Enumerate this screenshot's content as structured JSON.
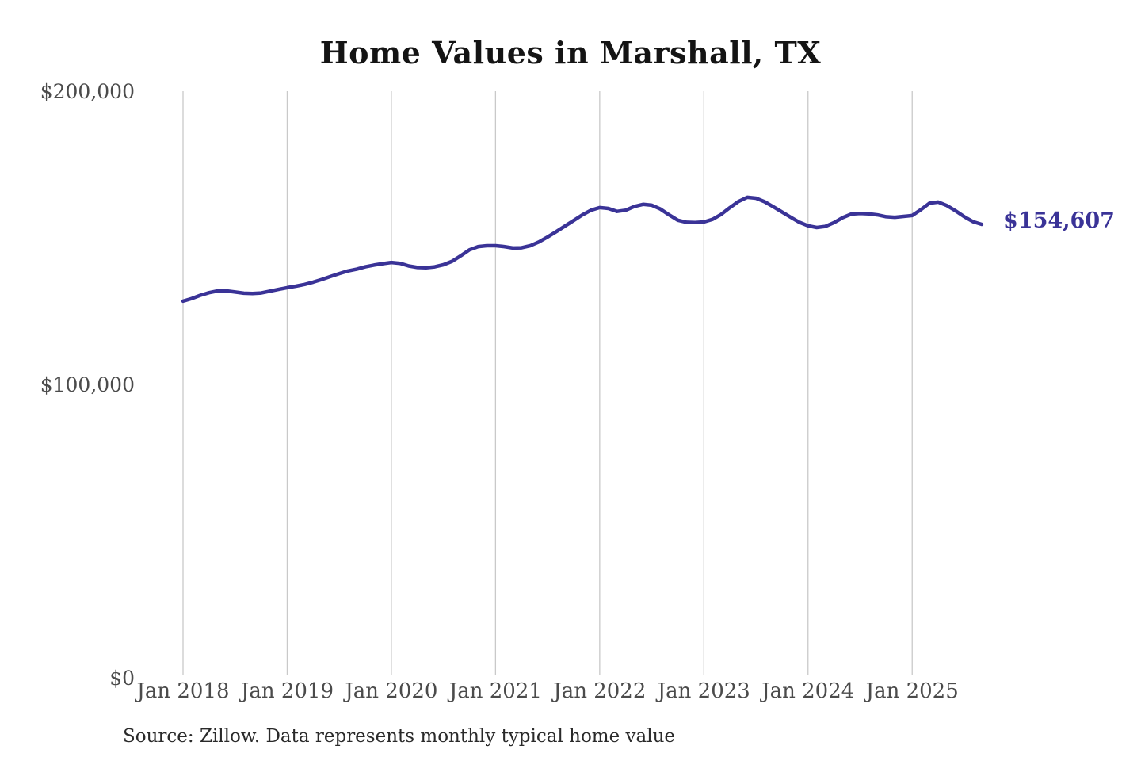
{
  "chart_data": {
    "type": "line",
    "title": "Home Values in Marshall, TX",
    "xlabel": "",
    "ylabel": "",
    "ylim": [
      0,
      200000
    ],
    "grid": "vertical-year-gridlines",
    "legend_position": "none",
    "x_ticks": [
      "Jan 2018",
      "Jan 2019",
      "Jan 2020",
      "Jan 2021",
      "Jan 2022",
      "Jan 2023",
      "Jan 2024",
      "Jan 2025"
    ],
    "y_ticks": [
      {
        "value": 0,
        "label": "$0"
      },
      {
        "value": 100000,
        "label": "$100,000"
      },
      {
        "value": 200000,
        "label": "$200,000"
      }
    ],
    "series": [
      {
        "name": "Monthly typical home value",
        "start_month": "Jan 2018",
        "end_month": "Sep 2025",
        "values": [
          128400,
          129300,
          130400,
          131300,
          131900,
          131900,
          131500,
          131100,
          131000,
          131200,
          131800,
          132400,
          133000,
          133500,
          134100,
          134900,
          135800,
          136800,
          137800,
          138700,
          139300,
          140100,
          140700,
          141200,
          141600,
          141300,
          140400,
          139900,
          139800,
          140100,
          140800,
          142000,
          143900,
          145900,
          147000,
          147300,
          147300,
          147000,
          146500,
          146600,
          147300,
          148600,
          150300,
          152100,
          154000,
          155900,
          157800,
          159400,
          160300,
          160000,
          159000,
          159400,
          160700,
          161400,
          161100,
          159800,
          157800,
          156000,
          155300,
          155200,
          155400,
          156300,
          158000,
          160300,
          162400,
          163800,
          163500,
          162300,
          160600,
          158800,
          157000,
          155300,
          154100,
          153500,
          153900,
          155200,
          156900,
          158100,
          158300,
          158200,
          157800,
          157200,
          157000,
          157300,
          157600,
          159600,
          161800,
          162200,
          161000,
          159200,
          157200,
          155500,
          154607
        ]
      }
    ],
    "end_label": {
      "text": "$154,607",
      "value": 154607
    },
    "source_note": "Source: Zillow. Data represents monthly typical home value"
  },
  "colors": {
    "line": "#3a3397",
    "grid": "#c9c9c9",
    "axis_text": "#4b4b4b",
    "title_text": "#141414",
    "source_text": "#2a2a2a",
    "background": "#ffffff"
  }
}
